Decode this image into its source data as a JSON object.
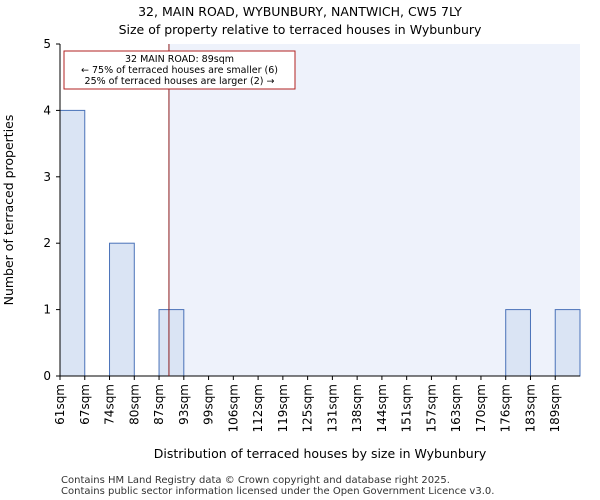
{
  "title_line1": "32, MAIN ROAD, WYBUNBURY, NANTWICH, CW5 7LY",
  "title_line2": "Size of property relative to terraced houses in Wybunbury",
  "footer_line1": "Contains HM Land Registry data © Crown copyright and database right 2025.",
  "footer_line2": "Contains public sector information licensed under the Open Government Licence v3.0.",
  "colors": {
    "bar_fill": "#dae4f4",
    "bar_stroke": "#4a72b8",
    "highlight_bg": "#eef2fb",
    "marker_line": "#8b1a1a",
    "annotation_border": "#b22222"
  },
  "chart_data": {
    "type": "bar",
    "title": "Size of property relative to terraced houses in Wybunbury",
    "xlabel": "Distribution of terraced houses by size in Wybunbury",
    "ylabel": "Number of terraced properties",
    "ylim": [
      0,
      5
    ],
    "yticks": [
      "0",
      "1",
      "2",
      "3",
      "4",
      "5"
    ],
    "categories": [
      "61sqm",
      "67sqm",
      "74sqm",
      "80sqm",
      "87sqm",
      "93sqm",
      "99sqm",
      "106sqm",
      "112sqm",
      "119sqm",
      "125sqm",
      "131sqm",
      "138sqm",
      "144sqm",
      "151sqm",
      "157sqm",
      "163sqm",
      "170sqm",
      "176sqm",
      "183sqm",
      "189sqm"
    ],
    "values": [
      4,
      0,
      2,
      0,
      1,
      0,
      0,
      0,
      0,
      0,
      0,
      0,
      0,
      0,
      0,
      0,
      0,
      0,
      1,
      0,
      1
    ],
    "property_bin_position": 4.4,
    "highlight_from_bin": 4.4,
    "annotation": {
      "line1": "32 MAIN ROAD: 89sqm",
      "line2": "← 75% of terraced houses are smaller (6)",
      "line3": "25% of terraced houses are larger (2) →"
    },
    "grid": false
  }
}
